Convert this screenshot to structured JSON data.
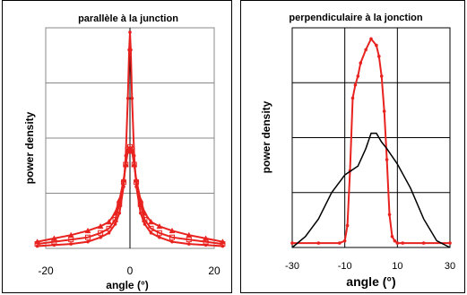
{
  "chart_data": [
    {
      "type": "line",
      "title": "parallèle à la junction",
      "xlabel": "angle (°)",
      "ylabel": "power density",
      "xlim": [
        -20,
        20
      ],
      "x_ticks": [
        -20,
        0,
        20
      ],
      "grid": "horizontal",
      "legend": "none",
      "series": [
        {
          "color": "#e8231f",
          "marker": "dot",
          "x": [
            -22,
            -18,
            -14,
            -10,
            -7,
            -5,
            -3.5,
            -2.5,
            -1.5,
            -1,
            -0.5,
            -0.2,
            0,
            0.2,
            0.5,
            1,
            1.5,
            2.5,
            3.5,
            5,
            7,
            10,
            14,
            18,
            22
          ],
          "y": [
            0.01,
            0.015,
            0.02,
            0.03,
            0.05,
            0.07,
            0.11,
            0.16,
            0.28,
            0.42,
            0.68,
            0.9,
            0.98,
            0.9,
            0.68,
            0.42,
            0.28,
            0.16,
            0.11,
            0.07,
            0.05,
            0.03,
            0.02,
            0.015,
            0.01
          ]
        },
        {
          "color": "#e8231f",
          "marker": "square",
          "x": [
            -22,
            -18,
            -14,
            -10,
            -7,
            -5,
            -3.5,
            -2.5,
            -1.5,
            -1,
            -0.5,
            0,
            0.5,
            1,
            1.5,
            2.5,
            3.5,
            5,
            7,
            10,
            14,
            18,
            22
          ],
          "y": [
            0.02,
            0.03,
            0.04,
            0.05,
            0.07,
            0.09,
            0.13,
            0.2,
            0.3,
            0.38,
            0.45,
            0.46,
            0.45,
            0.38,
            0.3,
            0.2,
            0.13,
            0.09,
            0.07,
            0.05,
            0.04,
            0.03,
            0.02
          ]
        },
        {
          "color": "#e8231f",
          "marker": "triangle",
          "x": [
            -22,
            -18,
            -14,
            -10,
            -7,
            -5,
            -3.5,
            -2.5,
            -1.5,
            -1,
            -0.5,
            0,
            0.5,
            1,
            1.5,
            2.5,
            3.5,
            5,
            7,
            10,
            14,
            18,
            22
          ],
          "y": [
            0.03,
            0.045,
            0.06,
            0.08,
            0.1,
            0.12,
            0.16,
            0.22,
            0.31,
            0.38,
            0.44,
            0.45,
            0.44,
            0.38,
            0.31,
            0.22,
            0.16,
            0.12,
            0.1,
            0.08,
            0.06,
            0.045,
            0.03
          ]
        }
      ]
    },
    {
      "type": "line",
      "title": "perpendiculaire à la jonction",
      "xlabel": "angle (°)",
      "ylabel": "power density",
      "xlim": [
        -30,
        30
      ],
      "x_ticks": [
        -30,
        -10,
        10,
        30
      ],
      "grid": "both",
      "legend": "none",
      "series": [
        {
          "color": "#e8231f",
          "marker": "dot",
          "x": [
            -30,
            -20,
            -12,
            -10,
            -9,
            -8,
            -7,
            -6,
            -5,
            -4,
            -2,
            0,
            2,
            3,
            4,
            5,
            6,
            7,
            8,
            9,
            10,
            12,
            20,
            30
          ],
          "y": [
            0.02,
            0.02,
            0.02,
            0.03,
            0.1,
            0.35,
            0.68,
            0.74,
            0.78,
            0.84,
            0.9,
            0.95,
            0.92,
            0.87,
            0.78,
            0.62,
            0.4,
            0.15,
            0.05,
            0.03,
            0.02,
            0.02,
            0.02,
            0.02
          ]
        },
        {
          "color": "#000000",
          "marker": "none",
          "x": [
            -30,
            -25,
            -20,
            -15,
            -10,
            -5,
            -2,
            0,
            2,
            4,
            6,
            10,
            15,
            20,
            25,
            30
          ],
          "y": [
            0.0,
            0.05,
            0.13,
            0.25,
            0.33,
            0.37,
            0.45,
            0.52,
            0.52,
            0.48,
            0.45,
            0.38,
            0.27,
            0.13,
            0.03,
            0.0
          ]
        }
      ]
    }
  ]
}
